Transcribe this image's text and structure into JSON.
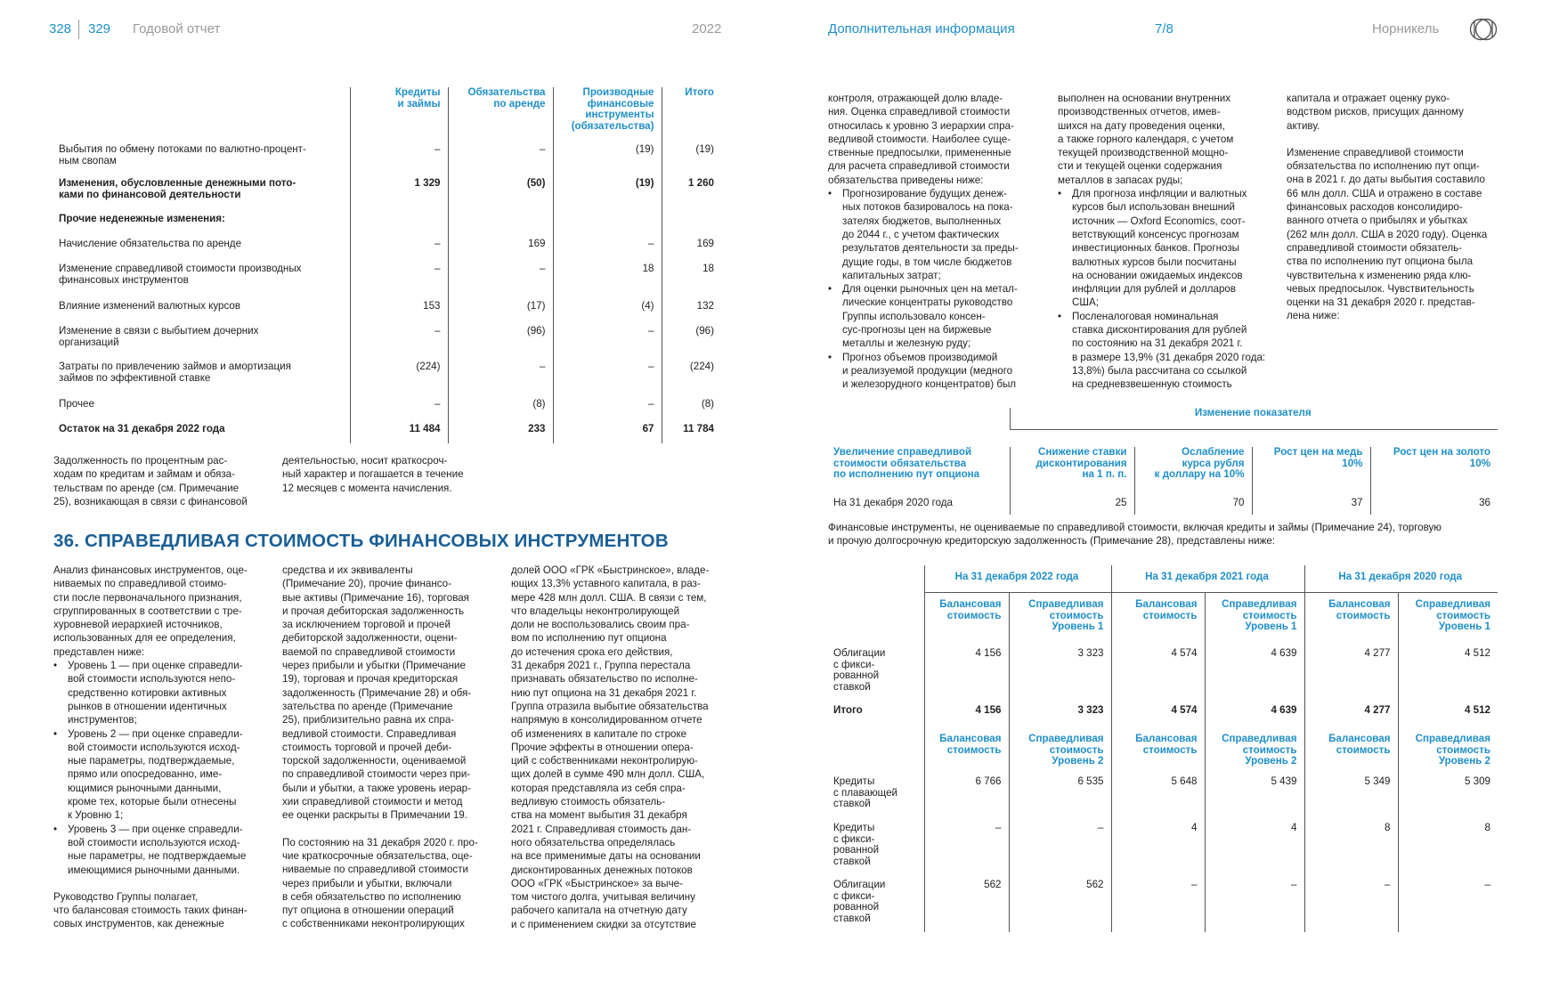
{
  "header": {
    "page_left": "328",
    "page_right": "329",
    "report_title": "Годовой отчет",
    "year": "2022",
    "section": "Дополнительная информация",
    "section_index": "7/8",
    "company": "Норникель"
  },
  "debt_table": {
    "columns": [
      "Кредиты и займы",
      "Обязательства по аренде",
      "Производные финансовые инструменты (обязательства)",
      "Итого"
    ],
    "col_labels": [
      [
        "Кредиты",
        "и займы"
      ],
      [
        "Обязательства",
        "по аренде"
      ],
      [
        "Производные",
        "финансовые",
        "инструменты",
        "(обязательства)"
      ],
      [
        "Итого"
      ]
    ],
    "rows": [
      {
        "label": [
          "Выбытия по обмену потоками по валютно-процент-",
          "ным свопам"
        ],
        "values": [
          "–",
          "–",
          "(19)",
          "(19)"
        ],
        "bold": false
      },
      {
        "label": [
          "Изменения, обусловленные денежными пото-",
          "ками по финансовой деятельности"
        ],
        "values": [
          "1 329",
          "(50)",
          "(19)",
          "1 260"
        ],
        "bold": true
      },
      {
        "label": [
          "Прочие неденежные изменения:"
        ],
        "values": [
          "",
          "",
          "",
          ""
        ],
        "bold": true
      },
      {
        "label": [
          "Начисление обязательства по аренде"
        ],
        "values": [
          "–",
          "169",
          "–",
          "169"
        ],
        "bold": false
      },
      {
        "label": [
          "Изменение справедливой стоимости производных",
          "финансовых инструментов"
        ],
        "values": [
          "–",
          "–",
          "18",
          "18"
        ],
        "bold": false
      },
      {
        "label": [
          "Влияние изменений валютных курсов"
        ],
        "values": [
          "153",
          "(17)",
          "(4)",
          "132"
        ],
        "bold": false
      },
      {
        "label": [
          "Изменение в связи с выбытием дочерних",
          "организаций"
        ],
        "values": [
          "–",
          "(96)",
          "–",
          "(96)"
        ],
        "bold": false
      },
      {
        "label": [
          "Затраты по привлечению займов и амортизация",
          "займов по эффективной ставке"
        ],
        "values": [
          "(224)",
          "–",
          "–",
          "(224)"
        ],
        "bold": false
      },
      {
        "label": [
          "Прочее"
        ],
        "values": [
          "–",
          "(8)",
          "–",
          "(8)"
        ],
        "bold": false
      },
      {
        "label": [
          "Остаток на 31 декабря 2022 года"
        ],
        "values": [
          "11 484",
          "233",
          "67",
          "11 784"
        ],
        "bold": true
      }
    ]
  },
  "note_left_col1": [
    "Задолженность по процентным рас-",
    "ходам по кредитам и займам и обяза-",
    "тельствам по аренде (см. Примечание",
    "25), возникающая в связи с финансовой"
  ],
  "note_left_col2": [
    "деятельностью, носит краткосроч-",
    "ный характер и погашается в течение",
    "12 месяцев с момента начисления."
  ],
  "section_title": "36. СПРАВЕДЛИВАЯ СТОИМОСТЬ ФИНАНСОВЫХ ИНСТРУМЕНТОВ",
  "col_a": {
    "intro": [
      "Анализ финансовых инструментов, оце-",
      "ниваемых по справедливой стоимо-",
      "сти после первоначального признания,",
      "сгруппированных в соответствии с тре-",
      "хуровневой иерархией источников,",
      "использованных для ее определения,",
      "представлен ниже:"
    ],
    "bullets": [
      [
        "Уровень 1 — при оценке справедли-",
        "вой стоимости используются непо-",
        "средственно котировки активных",
        "рынков в отношении идентичных",
        "инструментов;"
      ],
      [
        "Уровень 2 — при оценке справедли-",
        "вой стоимости используются исход-",
        "ные параметры, подтверждаемые,",
        "прямо или опосредованно, име-",
        "ющимися рыночными данными,",
        "кроме тех, которые были отнесены",
        "к Уровню 1;"
      ],
      [
        "Уровень 3 — при оценке справедли-",
        "вой стоимости используются исход-",
        "ные параметры, не подтверждаемые",
        "имеющимися рыночными данными."
      ]
    ],
    "outro": [
      "Руководство Группы полагает,",
      "что балансовая стоимость таких финан-",
      "совых инструментов, как денежные"
    ]
  },
  "col_b": {
    "p1": [
      "средства и их эквиваленты",
      "(Примечание 20), прочие финансо-",
      "вые активы (Примечание 16), торговая",
      "и прочая дебиторская задолженность",
      "за исключением торговой и прочей",
      "дебиторской задолженности, оцени-",
      "ваемой по справедливой стоимости",
      "через прибыли и убытки (Примечание",
      "19), торговая и прочая кредиторская",
      "задолженность (Примечание 28) и обя-",
      "зательства по аренде (Примечание",
      "25), приблизительно равна их спра-",
      "ведливой стоимости. Справедливая",
      "стоимость торговой и прочей деби-",
      "торской задолженности, оцениваемой",
      "по справедливой стоимости через при-",
      "были и убытки, а также уровень иерар-",
      "хии справедливой стоимости и метод",
      "ее оценки раскрыты в Примечании 19."
    ],
    "p2": [
      "По состоянию на 31 декабря 2020 г. про-",
      "чие краткосрочные обязательства, оце-",
      "ниваемые по справедливой стоимости",
      "через прибыли и убытки, включали",
      "в себя обязательство по исполнению",
      "пут опциона в отношении операций",
      "с собственниками неконтролирующих"
    ]
  },
  "col_c": [
    "долей ООО «ГРК «Быстринское», владе-",
    "ющих 13,3% уставного капитала, в раз-",
    "мере 428 млн долл. США. В связи с тем,",
    "что владельцы неконтролирующей",
    "доли не воспользовались своим пра-",
    "вом по исполнению пут опциона",
    "до истечения срока его действия,",
    "31 декабря 2021 г., Группа перестала",
    "признавать обязательство по исполне-",
    "нию пут опциона на 31 декабря 2021 г.",
    "Группа отразила выбытие обязательства",
    "напрямую в консолидированном отчете",
    "об изменениях в капитале по строке",
    "Прочие эффекты в отношении опера-",
    "ций с собственниками неконтролирую-",
    "щих долей в сумме 490 млн долл. США,",
    "которая представляла из себя спра-",
    "ведливую стоимость обязатель-",
    "ства на момент выбытия 31 декабря",
    "2021 г. Справедливая стоимость дан-",
    "ного обязательства определялась",
    "на все применимые даты на основании",
    "дисконтированных денежных потоков",
    "ООО «ГРК «Быстринское» за выче-",
    "том чистого долга, учитывая величину",
    "рабочего капитала на отчетную дату",
    "и с применением скидки за отсутствие"
  ],
  "col_d": {
    "p1": [
      "контроля, отражающей долю владе-",
      "ния. Оценка справедливой стоимости",
      "относилась к уровню 3 иерархии спра-",
      "ведливой стоимости. Наиболее суще-",
      "ственные предпосылки, примененные",
      "для расчета справедливой стоимости",
      "обязательства приведены ниже:"
    ],
    "bullets": [
      [
        "Прогнозирование будущих денеж-",
        "ных потоков базировалось на пока-",
        "зателях бюджетов, выполненных",
        "до 2044 г., с учетом фактических",
        "результатов деятельности за преды-",
        "дущие годы, в том числе бюджетов",
        "капитальных затрат;"
      ],
      [
        "Для оценки рыночных цен на метал-",
        "лические концентраты руководство",
        "Группы использовало консен-",
        "сус-прогнозы цен на биржевые",
        "металлы и железную руду;"
      ],
      [
        "Прогноз объемов производимой",
        "и реализуемой продукции (медного",
        "и железорудного концентратов) был"
      ]
    ]
  },
  "col_e": {
    "p1": [
      "выполнен на основании внутренних",
      "производственных отчетов, имев-",
      "шихся на дату проведения оценки,",
      "а также горного календаря, с учетом",
      "текущей производственной мощно-",
      "сти и текущей оценки содержания",
      "металлов в запасах руды;"
    ],
    "bullets": [
      [
        "Для прогноза инфляции и валютных",
        "курсов был использован внешний",
        "источник — Oxford Economics, соот-",
        "ветствующий консенсус прогнозам",
        "инвестиционных банков. Прогнозы",
        "валютных курсов были посчитаны",
        "на основании ожидаемых индексов",
        "инфляции для рублей и долларов",
        "США;"
      ],
      [
        "Посленалоговая номинальная",
        "ставка дисконтирования для рублей",
        "по состоянию на 31 декабря 2021 г.",
        "в размере 13,9% (31 декабря 2020 года:",
        "13,8%) была рассчитана со ссылкой",
        "на средневзвешенную стоимость"
      ]
    ]
  },
  "col_f": {
    "p1": [
      "капитала и отражает оценку руко-",
      "водством рисков, присущих данному",
      "активу."
    ],
    "p2": [
      "Изменение справедливой стоимости",
      "обязательства по исполнению пут опци-",
      "она в 2021 г. до даты выбытия составило",
      "66 млн долл. США и отражено в составе",
      "финансовых расходов консолидиро-",
      "ванного отчета о прибылях и убытках",
      "(262 млн долл. США в 2020 году). Оценка",
      "справедливой стоимости обязатель-",
      "ства по исполнению пут опциона была",
      "чувствительна к изменению ряда клю-",
      "чевых предпосылок. Чувствительность",
      "оценки на 31 декабря 2020 г. представ-",
      "лена ниже:"
    ]
  },
  "sensitivity": {
    "group_header": "Изменение показателя",
    "row_header": [
      "Увеличение справедливой",
      "стоимости обязательства",
      "по исполнению пут опциона"
    ],
    "col_labels": [
      [
        "Снижение ставки",
        "дисконтирования",
        "на 1 п. п."
      ],
      [
        "Ослабление",
        "курса рубля",
        "к доллару на 10%"
      ],
      [
        "Рост цен на медь",
        "10%"
      ],
      [
        "Рост цен на золото",
        "10%"
      ]
    ],
    "row_label": "На 31 декабря 2020 года",
    "values": [
      "25",
      "70",
      "37",
      "36"
    ]
  },
  "fi_intro": [
    "Финансовые инструменты, не оцениваемые по справедливой стоимости, включая кредиты и займы (Примечание 24), торговую",
    "и прочую долгосрочную кредиторскую задолженность (Примечание 28), представлены ниже:"
  ],
  "fi_table": {
    "periods": [
      "На 31 декабря 2022 года",
      "На 31 декабря 2021 года",
      "На 31 декабря 2020 года"
    ],
    "sub_level1": [
      [
        "Балансовая",
        "стоимость"
      ],
      [
        "Справедливая",
        "стоимость",
        "Уровень 1"
      ]
    ],
    "sub_level2": [
      [
        "Балансовая",
        "стоимость"
      ],
      [
        "Справедливая",
        "стоимость",
        "Уровень 2"
      ]
    ],
    "rows_level1": [
      {
        "label": [
          "Облигации",
          "с фикси-",
          "рованной",
          "ставкой"
        ],
        "values": [
          "4 156",
          "3 323",
          "4 574",
          "4 639",
          "4 277",
          "4 512"
        ],
        "bold": false
      },
      {
        "label": [
          "Итого"
        ],
        "values": [
          "4 156",
          "3 323",
          "4 574",
          "4 639",
          "4 277",
          "4 512"
        ],
        "bold": true
      }
    ],
    "rows_level2": [
      {
        "label": [
          "Кредиты",
          "с плавающей",
          "ставкой"
        ],
        "values": [
          "6 766",
          "6 535",
          "5 648",
          "5 439",
          "5 349",
          "5 309"
        ],
        "bold": false
      },
      {
        "label": [
          "Кредиты",
          "с фикси-",
          "рованной",
          "ставкой"
        ],
        "values": [
          "–",
          "–",
          "4",
          "4",
          "8",
          "8"
        ],
        "bold": false
      },
      {
        "label": [
          "Облигации",
          "с фикси-",
          "рованной",
          "ставкой"
        ],
        "values": [
          "562",
          "562",
          "–",
          "–",
          "–",
          "–"
        ],
        "bold": false
      }
    ]
  },
  "colors": {
    "accent": "#1f8fc9",
    "title": "#1a5f96",
    "text": "#222222",
    "muted": "#9a9a9a"
  }
}
